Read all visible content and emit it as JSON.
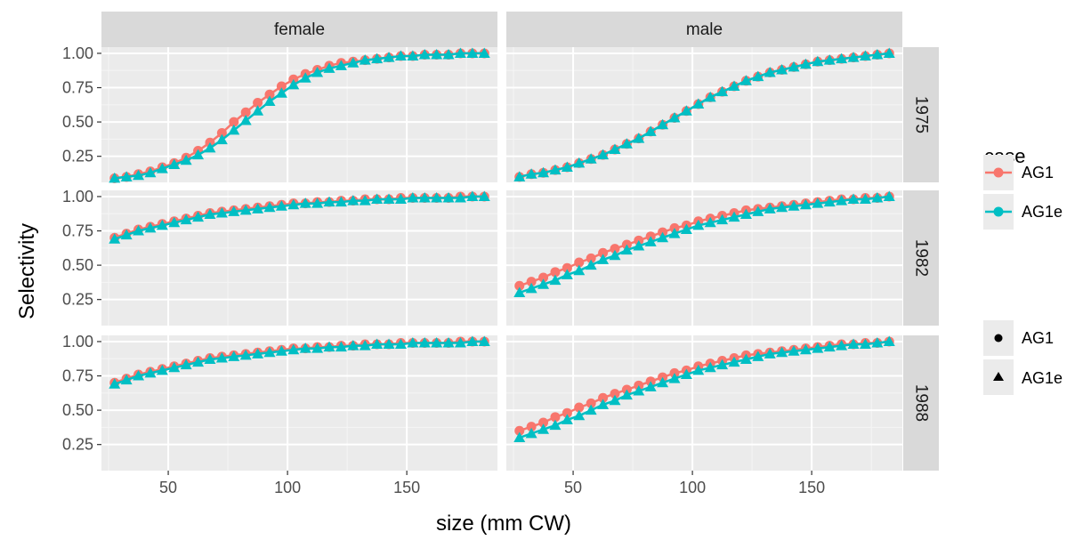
{
  "chart_data": {
    "type": "line",
    "xlabel": "size (mm CW)",
    "ylabel": "Selectivity",
    "xlim": [
      22,
      188
    ],
    "ylim": [
      0.06,
      1.045
    ],
    "x_ticks": [
      50,
      100,
      150
    ],
    "y_ticks": [
      0.25,
      0.5,
      0.75,
      1.0
    ],
    "y_tick_labels": [
      "0.25",
      "0.50",
      "0.75",
      "1.00"
    ],
    "grid": true,
    "facet_columns": [
      "female",
      "male"
    ],
    "facet_rows": [
      "1975",
      "1982",
      "1988"
    ],
    "colors": {
      "AG1": "#F8766D",
      "AG1e": "#00BFC4"
    },
    "legend": {
      "placement": "right",
      "color_title": "case",
      "color_entries": [
        "AG1",
        "AG1e"
      ],
      "shape_entries": [
        "AG1",
        "AG1e"
      ],
      "shapes": {
        "AG1": "circle",
        "AG1e": "triangle"
      }
    },
    "x": [
      27.5,
      32.5,
      37.5,
      42.5,
      47.5,
      52.5,
      57.5,
      62.5,
      67.5,
      72.5,
      77.5,
      82.5,
      87.5,
      92.5,
      97.5,
      102.5,
      107.5,
      112.5,
      117.5,
      122.5,
      127.5,
      132.5,
      137.5,
      142.5,
      147.5,
      152.5,
      157.5,
      162.5,
      167.5,
      172.5,
      177.5,
      182.5
    ],
    "panels": [
      {
        "col": "female",
        "row": "1975",
        "series": [
          {
            "name": "AG1",
            "values": [
              0.09,
              0.1,
              0.12,
              0.14,
              0.17,
              0.2,
              0.24,
              0.29,
              0.35,
              0.42,
              0.5,
              0.57,
              0.64,
              0.7,
              0.76,
              0.81,
              0.85,
              0.88,
              0.91,
              0.93,
              0.94,
              0.95,
              0.96,
              0.97,
              0.98,
              0.98,
              0.99,
              0.99,
              0.99,
              1.0,
              1.0,
              1.0
            ]
          },
          {
            "name": "AG1e",
            "values": [
              0.09,
              0.1,
              0.11,
              0.13,
              0.16,
              0.19,
              0.22,
              0.26,
              0.31,
              0.37,
              0.44,
              0.51,
              0.58,
              0.65,
              0.71,
              0.77,
              0.82,
              0.86,
              0.89,
              0.91,
              0.93,
              0.95,
              0.96,
              0.97,
              0.98,
              0.98,
              0.99,
              0.99,
              0.99,
              1.0,
              1.0,
              1.0
            ]
          }
        ]
      },
      {
        "col": "male",
        "row": "1975",
        "series": [
          {
            "name": "AG1",
            "values": [
              0.1,
              0.12,
              0.13,
              0.15,
              0.17,
              0.2,
              0.23,
              0.26,
              0.3,
              0.34,
              0.38,
              0.43,
              0.48,
              0.53,
              0.58,
              0.63,
              0.68,
              0.72,
              0.76,
              0.8,
              0.83,
              0.86,
              0.88,
              0.9,
              0.92,
              0.94,
              0.95,
              0.96,
              0.97,
              0.98,
              0.99,
              1.0
            ]
          },
          {
            "name": "AG1e",
            "values": [
              0.1,
              0.12,
              0.13,
              0.15,
              0.17,
              0.2,
              0.23,
              0.26,
              0.3,
              0.34,
              0.38,
              0.43,
              0.48,
              0.53,
              0.58,
              0.63,
              0.68,
              0.72,
              0.76,
              0.8,
              0.83,
              0.86,
              0.88,
              0.9,
              0.92,
              0.94,
              0.95,
              0.96,
              0.97,
              0.98,
              0.99,
              1.0
            ]
          }
        ]
      },
      {
        "col": "female",
        "row": "1982",
        "series": [
          {
            "name": "AG1",
            "values": [
              0.7,
              0.73,
              0.76,
              0.78,
              0.8,
              0.82,
              0.84,
              0.86,
              0.88,
              0.89,
              0.9,
              0.91,
              0.92,
              0.93,
              0.94,
              0.95,
              0.95,
              0.96,
              0.96,
              0.97,
              0.97,
              0.98,
              0.98,
              0.98,
              0.99,
              0.99,
              0.99,
              0.99,
              0.99,
              1.0,
              1.0,
              1.0
            ]
          },
          {
            "name": "AG1e",
            "values": [
              0.69,
              0.72,
              0.75,
              0.77,
              0.79,
              0.81,
              0.83,
              0.85,
              0.87,
              0.88,
              0.89,
              0.9,
              0.91,
              0.92,
              0.93,
              0.94,
              0.95,
              0.95,
              0.96,
              0.96,
              0.97,
              0.97,
              0.98,
              0.98,
              0.98,
              0.99,
              0.99,
              0.99,
              0.99,
              0.99,
              1.0,
              1.0
            ]
          }
        ]
      },
      {
        "col": "male",
        "row": "1982",
        "series": [
          {
            "name": "AG1",
            "values": [
              0.35,
              0.38,
              0.41,
              0.45,
              0.48,
              0.52,
              0.55,
              0.59,
              0.62,
              0.65,
              0.68,
              0.71,
              0.74,
              0.77,
              0.79,
              0.82,
              0.84,
              0.86,
              0.88,
              0.9,
              0.91,
              0.92,
              0.93,
              0.94,
              0.95,
              0.96,
              0.97,
              0.98,
              0.98,
              0.99,
              0.99,
              1.0
            ]
          },
          {
            "name": "AG1e",
            "values": [
              0.3,
              0.33,
              0.36,
              0.39,
              0.43,
              0.46,
              0.5,
              0.54,
              0.57,
              0.61,
              0.64,
              0.67,
              0.7,
              0.73,
              0.76,
              0.79,
              0.81,
              0.83,
              0.85,
              0.87,
              0.89,
              0.91,
              0.92,
              0.93,
              0.94,
              0.95,
              0.96,
              0.97,
              0.98,
              0.98,
              0.99,
              1.0
            ]
          }
        ]
      },
      {
        "col": "female",
        "row": "1988",
        "series": [
          {
            "name": "AG1",
            "values": [
              0.7,
              0.73,
              0.76,
              0.78,
              0.8,
              0.82,
              0.84,
              0.86,
              0.88,
              0.89,
              0.9,
              0.91,
              0.92,
              0.93,
              0.94,
              0.95,
              0.95,
              0.96,
              0.96,
              0.97,
              0.97,
              0.98,
              0.98,
              0.98,
              0.99,
              0.99,
              0.99,
              0.99,
              0.99,
              1.0,
              1.0,
              1.0
            ]
          },
          {
            "name": "AG1e",
            "values": [
              0.69,
              0.72,
              0.75,
              0.77,
              0.79,
              0.81,
              0.83,
              0.85,
              0.87,
              0.88,
              0.89,
              0.9,
              0.91,
              0.92,
              0.93,
              0.94,
              0.95,
              0.95,
              0.96,
              0.96,
              0.97,
              0.97,
              0.98,
              0.98,
              0.98,
              0.99,
              0.99,
              0.99,
              0.99,
              0.99,
              1.0,
              1.0
            ]
          }
        ]
      },
      {
        "col": "male",
        "row": "1988",
        "series": [
          {
            "name": "AG1",
            "values": [
              0.35,
              0.38,
              0.41,
              0.45,
              0.48,
              0.52,
              0.55,
              0.59,
              0.62,
              0.65,
              0.68,
              0.71,
              0.74,
              0.77,
              0.79,
              0.82,
              0.84,
              0.86,
              0.88,
              0.9,
              0.91,
              0.92,
              0.93,
              0.94,
              0.95,
              0.96,
              0.97,
              0.98,
              0.98,
              0.99,
              0.99,
              1.0
            ]
          },
          {
            "name": "AG1e",
            "values": [
              0.3,
              0.33,
              0.36,
              0.39,
              0.43,
              0.46,
              0.5,
              0.54,
              0.57,
              0.61,
              0.64,
              0.67,
              0.7,
              0.73,
              0.76,
              0.79,
              0.81,
              0.83,
              0.85,
              0.87,
              0.89,
              0.91,
              0.92,
              0.93,
              0.94,
              0.95,
              0.96,
              0.97,
              0.98,
              0.98,
              0.99,
              1.0
            ]
          }
        ]
      }
    ]
  }
}
